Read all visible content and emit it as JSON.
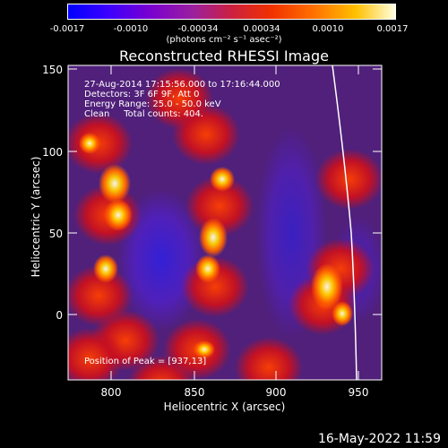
{
  "colorbar": {
    "ticks": [
      "-0.0017",
      "-0.0010",
      "-0.00034",
      "0.00034",
      "0.0010",
      "0.0017"
    ],
    "units": "(photons cm⁻² s⁻¹ asec⁻²)"
  },
  "title": "Reconstructed RHESSI Image",
  "info": {
    "time": "27-Aug-2014 17:15:56.000 to 17:16:44.000",
    "detectors": "Detectors: 3F 6F 9F, Att 0",
    "energy": "Energy Range: 25.0 - 50.0 keV",
    "clean": "Clean     Total counts: 404.",
    "peak": "Position of Peak = [937,13]"
  },
  "axes": {
    "xlabel": "Heliocentric X (arcsec)",
    "ylabel": "Heliocentric Y (arcsec)",
    "xticks": [
      "800",
      "850",
      "900",
      "950"
    ],
    "yticks": [
      "150",
      "100",
      "50",
      "0"
    ]
  },
  "datestamp": "16-May-2022 11:59"
}
